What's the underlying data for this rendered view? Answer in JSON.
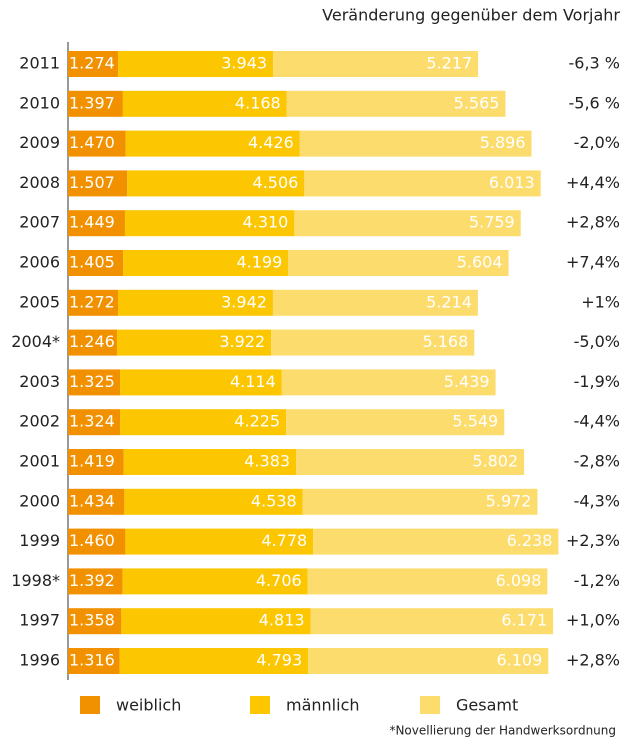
{
  "chart_data": {
    "type": "bar",
    "orientation": "horizontal",
    "stacked": true,
    "right_header": "Veränderung gegenüber dem Vorjahr",
    "categories": [
      "2011",
      "2010",
      "2009",
      "2008",
      "2007",
      "2006",
      "2005",
      "2004*",
      "2003",
      "2002",
      "2001",
      "2000",
      "1999",
      "1998*",
      "1997",
      "1996"
    ],
    "series": [
      {
        "name": "weiblich",
        "color": "#f29100",
        "values": [
          1274,
          1397,
          1470,
          1507,
          1449,
          1405,
          1272,
          1246,
          1325,
          1324,
          1419,
          1434,
          1460,
          1392,
          1358,
          1316
        ],
        "value_labels": [
          "1.274",
          "1.397",
          "1.470",
          "1.507",
          "1.449",
          "1.405",
          "1.272",
          "1.246",
          "1.325",
          "1.324",
          "1.419",
          "1.434",
          "1.460",
          "1.392",
          "1.358",
          "1.316"
        ]
      },
      {
        "name": "männlich",
        "color": "#fcc600",
        "values": [
          3943,
          4168,
          4426,
          4506,
          4310,
          4199,
          3942,
          3922,
          4114,
          4225,
          4383,
          4538,
          4778,
          4706,
          4813,
          4793
        ],
        "value_labels": [
          "3.943",
          "4.168",
          "4.426",
          "4.506",
          "4.310",
          "4.199",
          "3.942",
          "3.922",
          "4.114",
          "4.225",
          "4.383",
          "4.538",
          "4.778",
          "4.706",
          "4.813",
          "4.793"
        ]
      },
      {
        "name": "Gesamt",
        "color": "#fddc6e",
        "values": [
          5217,
          5565,
          5896,
          6013,
          5759,
          5604,
          5214,
          5168,
          5439,
          5549,
          5802,
          5972,
          6238,
          6098,
          6171,
          6109
        ],
        "value_labels": [
          "5.217",
          "5.565",
          "5.896",
          "6.013",
          "5.759",
          "5.604",
          "5.214",
          "5.168",
          "5.439",
          "5.549",
          "5.802",
          "5.972",
          "6.238",
          "6.098",
          "6.171",
          "6.109"
        ]
      }
    ],
    "changes": [
      "-6,3 %",
      "-5,6 %",
      "-2,0%",
      "+4,4%",
      "+2,8%",
      "+7,4%",
      "+1%",
      "-5,0%",
      "-1,9%",
      "-4,4%",
      "-2,8%",
      "-4,3%",
      "+2,3%",
      "-1,2%",
      "+1,0%",
      "+2,8%"
    ],
    "xlim": [
      0,
      13000
    ],
    "footnote": "*Novellierung der Handwerksordnung"
  }
}
